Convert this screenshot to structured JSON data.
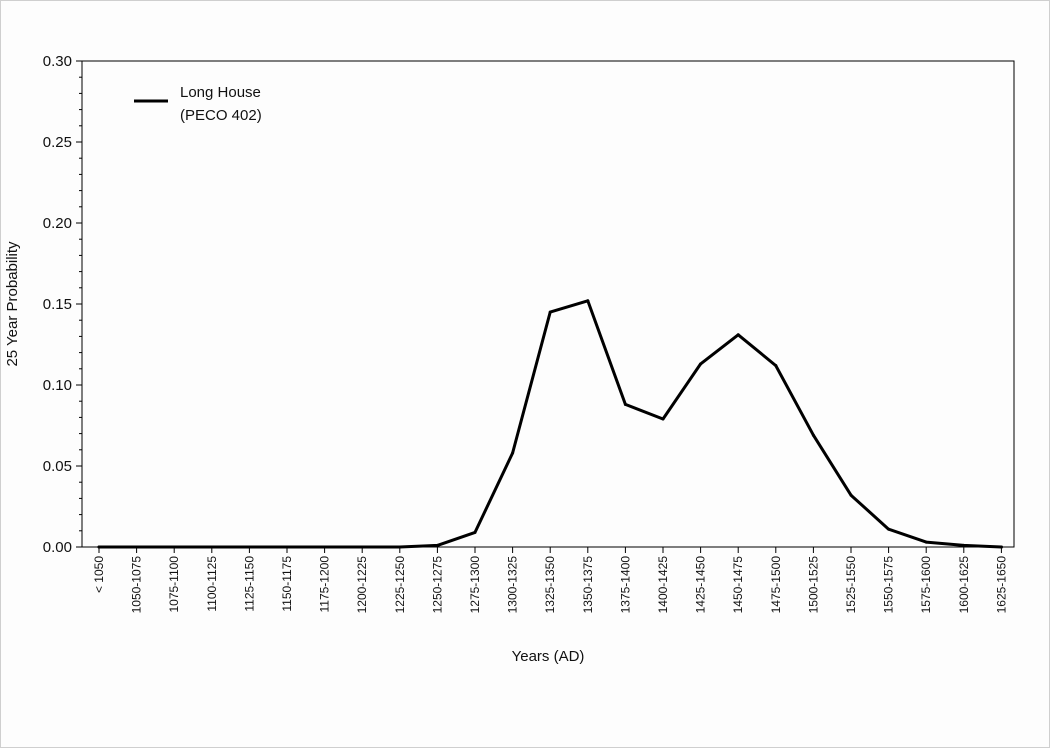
{
  "chart_data": {
    "type": "line",
    "xlabel": "Years (AD)",
    "ylabel": "25 Year Probability",
    "ylim": [
      0,
      0.3
    ],
    "yticks": [
      "0.00",
      "0.05",
      "0.10",
      "0.15",
      "0.20",
      "0.25",
      "0.30"
    ],
    "categories": [
      "< 1050",
      "1050-1075",
      "1075-1100",
      "1100-1125",
      "1125-1150",
      "1150-1175",
      "1175-1200",
      "1200-1225",
      "1225-1250",
      "1250-1275",
      "1275-1300",
      "1300-1325",
      "1325-1350",
      "1350-1375",
      "1375-1400",
      "1400-1425",
      "1425-1450",
      "1450-1475",
      "1475-1500",
      "1500-1525",
      "1525-1550",
      "1550-1575",
      "1575-1600",
      "1600-1625",
      "1625-1650"
    ],
    "series": [
      {
        "name": "Long House\n(PECO 402)",
        "legend_lines": [
          "Long House",
          "(PECO 402)"
        ],
        "color": "#000000",
        "values": [
          0.0,
          0.0,
          0.0,
          0.0,
          0.0,
          0.0,
          0.0,
          0.0,
          0.0,
          0.001,
          0.009,
          0.058,
          0.145,
          0.152,
          0.088,
          0.079,
          0.113,
          0.131,
          0.112,
          0.069,
          0.032,
          0.011,
          0.003,
          0.001,
          0.0
        ]
      }
    ],
    "grid": false,
    "legend_position": "top-left"
  }
}
